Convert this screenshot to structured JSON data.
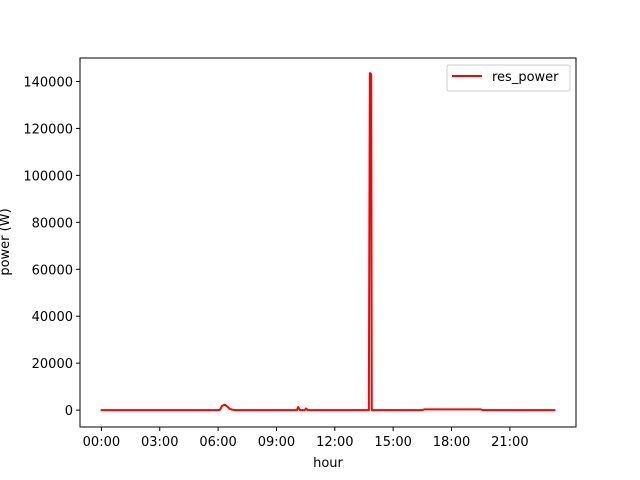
{
  "chart_data": {
    "type": "line",
    "title": "",
    "xlabel": "hour",
    "ylabel": "power (W)",
    "x_tick_labels": [
      "00:00",
      "03:00",
      "06:00",
      "09:00",
      "12:00",
      "15:00",
      "18:00",
      "21:00"
    ],
    "x_tick_hours": [
      0,
      3,
      6,
      9,
      12,
      15,
      18,
      21
    ],
    "y_ticks": [
      0,
      20000,
      40000,
      60000,
      80000,
      100000,
      120000,
      140000
    ],
    "xlim_hours": [
      -1.1,
      24.4
    ],
    "ylim": [
      -7200,
      150000
    ],
    "grid": false,
    "legend": {
      "position": "top-right"
    },
    "series": [
      {
        "name": "res_power",
        "color": "#ff0000",
        "x_hours": [
          0,
          6.0,
          6.1,
          6.2,
          6.35,
          6.5,
          6.6,
          6.75,
          6.9,
          7.0,
          10.05,
          10.12,
          10.2,
          10.45,
          10.52,
          10.6,
          13.75,
          13.8,
          13.83,
          13.87,
          13.9,
          13.95,
          16.5,
          16.6,
          19.5,
          19.6,
          23.3
        ],
        "y": [
          0,
          0,
          150,
          1800,
          2300,
          1300,
          500,
          150,
          0,
          0,
          0,
          1300,
          0,
          0,
          700,
          0,
          0,
          143500,
          143500,
          143000,
          0,
          0,
          0,
          300,
          300,
          0,
          0
        ]
      }
    ]
  }
}
